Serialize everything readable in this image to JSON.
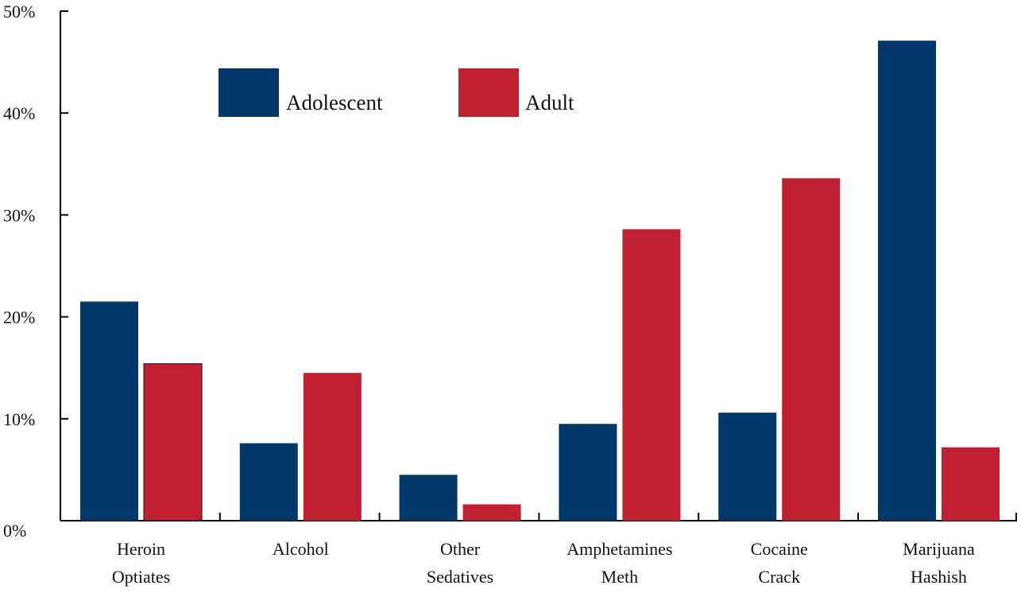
{
  "chart_data": {
    "type": "bar",
    "categories": [
      [
        "Heroin",
        "Optiates"
      ],
      [
        "Alcohol"
      ],
      [
        "Other",
        "Sedatives"
      ],
      [
        "Amphetamines",
        "Meth"
      ],
      [
        "Cocaine",
        "Crack"
      ],
      [
        "Marijuana",
        "Hashish"
      ]
    ],
    "series": [
      {
        "name": "Adolescent",
        "color": "#02386a",
        "values": [
          21.5,
          7.6,
          4.5,
          9.5,
          10.6,
          47.1
        ]
      },
      {
        "name": "Adult",
        "color": "#c02032",
        "values": [
          15.4,
          14.5,
          1.6,
          28.6,
          33.6,
          7.2
        ]
      }
    ],
    "ylim": [
      0,
      50
    ],
    "yticks": [
      "0%",
      "10%",
      "20%",
      "30%",
      "40%",
      "50%"
    ],
    "title": "",
    "xlabel": "",
    "ylabel": "",
    "legend_position": "top-left, horizontal",
    "grid": false
  }
}
